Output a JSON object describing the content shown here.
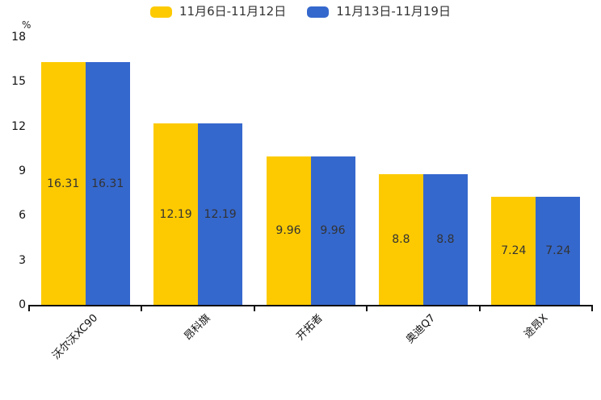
{
  "chart_data": {
    "type": "bar",
    "title": "",
    "categories": [
      "沃尔沃XC90",
      "昂科旗",
      "开拓者",
      "奥迪Q7",
      "途昂X"
    ],
    "series": [
      {
        "name": "11月6日-11月12日",
        "color": "#FDCA01",
        "values": [
          16.31,
          12.19,
          9.96,
          8.8,
          7.24
        ]
      },
      {
        "name": "11月13日-11月19日",
        "color": "#3568CD",
        "values": [
          16.31,
          12.19,
          9.96,
          8.8,
          7.24
        ]
      }
    ],
    "xlabel": "",
    "ylabel": "%",
    "ylim": [
      0,
      18
    ],
    "yticks": [
      0,
      3,
      6,
      9,
      12,
      15,
      18
    ],
    "legend_position": "top",
    "grid": false,
    "bar_value_labels": true,
    "value_label_color": "#333333",
    "axis_color": "#111111",
    "text_color": "#111111"
  }
}
